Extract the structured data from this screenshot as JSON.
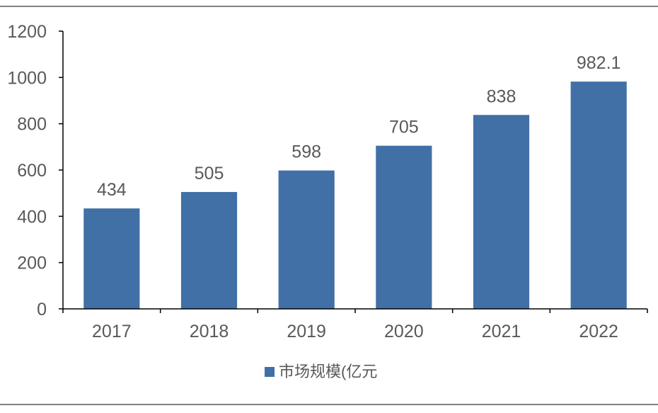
{
  "chart_data": {
    "type": "bar",
    "categories": [
      "2017",
      "2018",
      "2019",
      "2020",
      "2021",
      "2022"
    ],
    "series": [
      {
        "name": "市场规模(亿元",
        "values": [
          434,
          505,
          598,
          705,
          838,
          982.1
        ]
      }
    ],
    "data_labels": [
      "434",
      "505",
      "598",
      "705",
      "838",
      "982.1"
    ],
    "yticks": [
      "0",
      "200",
      "400",
      "600",
      "800",
      "1000",
      "1200"
    ],
    "ylim": [
      0,
      1200
    ],
    "legend_position": "bottom-center",
    "grid": false,
    "colors": {
      "bar": "#4170a6",
      "axis": "#000000",
      "text": "#595959",
      "border": "#000000"
    }
  }
}
